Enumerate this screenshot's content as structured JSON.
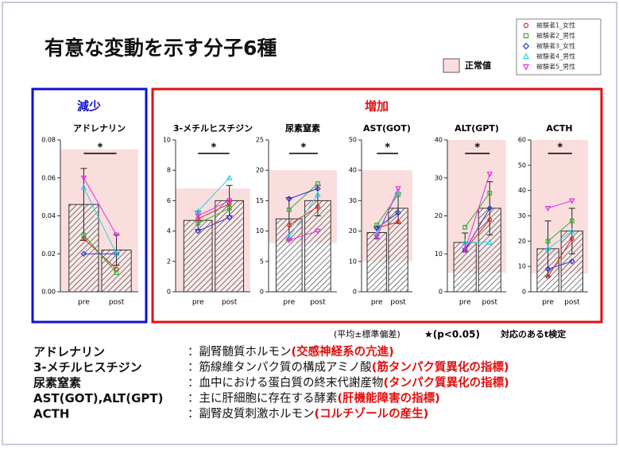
{
  "title": "有意な変動を示す分子6種",
  "legend": {
    "normal": "正常値",
    "normal_color": "#fadede",
    "subjects": [
      {
        "name": "被験者1_女性",
        "color": "#e02020",
        "marker": "circle"
      },
      {
        "name": "被験者2_男性",
        "color": "#30b030",
        "marker": "square"
      },
      {
        "name": "被験者3_女性",
        "color": "#3030d0",
        "marker": "diamond"
      },
      {
        "name": "被験者4_男性",
        "color": "#30d0e0",
        "marker": "triangle"
      },
      {
        "name": "被験者5_男性",
        "color": "#e030e0",
        "marker": "triangle-down"
      }
    ]
  },
  "groups": [
    {
      "label": "減少",
      "color": "#1010d0"
    },
    {
      "label": "増加",
      "color": "#e01010"
    }
  ],
  "chart_data": [
    {
      "type": "bar",
      "title": "アドレナリン",
      "categories": [
        "pre",
        "post"
      ],
      "values": [
        0.046,
        0.022
      ],
      "errors": [
        0.019,
        0.008
      ],
      "ylim": [
        0,
        0.08
      ],
      "yticks": [
        {
          "value": 0,
          "label": "0.00"
        },
        {
          "value": 0.02,
          "label": "0.02"
        },
        {
          "value": 0.04,
          "label": "0.04"
        },
        {
          "value": 0.06,
          "label": "0.06"
        },
        {
          "value": 0.08,
          "label": "0.08"
        }
      ],
      "normal_range": [
        0,
        0.075
      ],
      "annotation": "*",
      "subjects": [
        [
          0.028,
          0.012
        ],
        [
          0.03,
          0.01
        ],
        [
          0.02,
          0.02
        ],
        [
          0.055,
          0.02
        ],
        [
          0.06,
          0.03
        ]
      ]
    },
    {
      "type": "bar",
      "title": "3-メチルヒスチジン",
      "categories": [
        "pre",
        "post"
      ],
      "values": [
        4.7,
        6.0
      ],
      "errors": [
        0.6,
        1.0
      ],
      "ylim": [
        0,
        10
      ],
      "yticks": [
        0,
        2,
        4,
        6,
        8,
        10
      ],
      "normal_range": [
        0,
        6.8
      ],
      "annotation": "*",
      "subjects": [
        [
          4.8,
          5.8
        ],
        [
          4.5,
          5.5
        ],
        [
          4.0,
          4.9
        ],
        [
          5.3,
          7.5
        ],
        [
          5.0,
          6.0
        ]
      ]
    },
    {
      "type": "bar",
      "title": "尿素窒素",
      "categories": [
        "pre",
        "post"
      ],
      "values": [
        12,
        15
      ],
      "errors": [
        3.5,
        2.5
      ],
      "ylim": [
        0,
        25
      ],
      "yticks": [
        0,
        5,
        10,
        15,
        20,
        25
      ],
      "normal_range": [
        8,
        20
      ],
      "annotation": "*",
      "subjects": [
        [
          11,
          14
        ],
        [
          13.5,
          17.8
        ],
        [
          15.3,
          17
        ],
        [
          9,
          16
        ],
        [
          8.5,
          10
        ]
      ]
    },
    {
      "type": "bar",
      "title": "AST(GOT)",
      "categories": [
        "pre",
        "post"
      ],
      "values": [
        19.5,
        27.5
      ],
      "errors": [
        2,
        5
      ],
      "ylim": [
        0,
        50
      ],
      "yticks": [
        0,
        10,
        20,
        30,
        40,
        50
      ],
      "normal_range": [
        10,
        40
      ],
      "annotation": "*",
      "subjects": [
        [
          21,
          23
        ],
        [
          22,
          32
        ],
        [
          21,
          26
        ],
        [
          19,
          33
        ],
        [
          18,
          34
        ]
      ]
    },
    {
      "type": "bar",
      "title": "ALT(GPT)",
      "categories": [
        "pre",
        "post"
      ],
      "values": [
        13,
        22
      ],
      "errors": [
        2.5,
        7
      ],
      "ylim": [
        0,
        40
      ],
      "yticks": [
        0,
        10,
        20,
        30,
        40
      ],
      "normal_range": [
        5,
        40
      ],
      "annotation": "*",
      "subjects": [
        [
          11,
          19
        ],
        [
          17,
          26
        ],
        [
          11,
          22
        ],
        [
          13,
          13
        ],
        [
          11,
          31
        ]
      ]
    },
    {
      "type": "bar",
      "title": "ACTH",
      "categories": [
        "pre",
        "post"
      ],
      "values": [
        17,
        24
      ],
      "errors": [
        11,
        9
      ],
      "ylim": [
        0,
        60
      ],
      "yticks": [
        0,
        10,
        20,
        30,
        40,
        50,
        60
      ],
      "normal_range": [
        7.2,
        60
      ],
      "annotation": "*",
      "subjects": [
        [
          6,
          21
        ],
        [
          20,
          28
        ],
        [
          9,
          12
        ],
        [
          17,
          24
        ],
        [
          33,
          36
        ]
      ]
    }
  ],
  "note": {
    "stat": "(平均±標準偏差)",
    "sig": "★(p<0.05)",
    "test": "対応のあるt検定"
  },
  "definitions": [
    {
      "term": "アドレナリン",
      "desc": "：副腎髄質ホルモン",
      "highlight": "(交感神経系の亢進)"
    },
    {
      "term": "3-メチルヒスチジン",
      "desc": "：筋線維タンパク質の構成アミノ酸",
      "highlight": "(筋タンパク質異化の指標)"
    },
    {
      "term": "尿素窒素",
      "desc": "：血中における蛋白質の終末代謝産物",
      "highlight": "(タンパク質異化の指標)"
    },
    {
      "term": "AST(GOT),ALT(GPT)",
      "desc": "：主に肝細胞に存在する酵素",
      "highlight": "(肝機能障害の指標)"
    },
    {
      "term": "ACTH",
      "desc": "：副腎皮質刺激ホルモン",
      "highlight": "(コルチゾールの産生)"
    }
  ]
}
